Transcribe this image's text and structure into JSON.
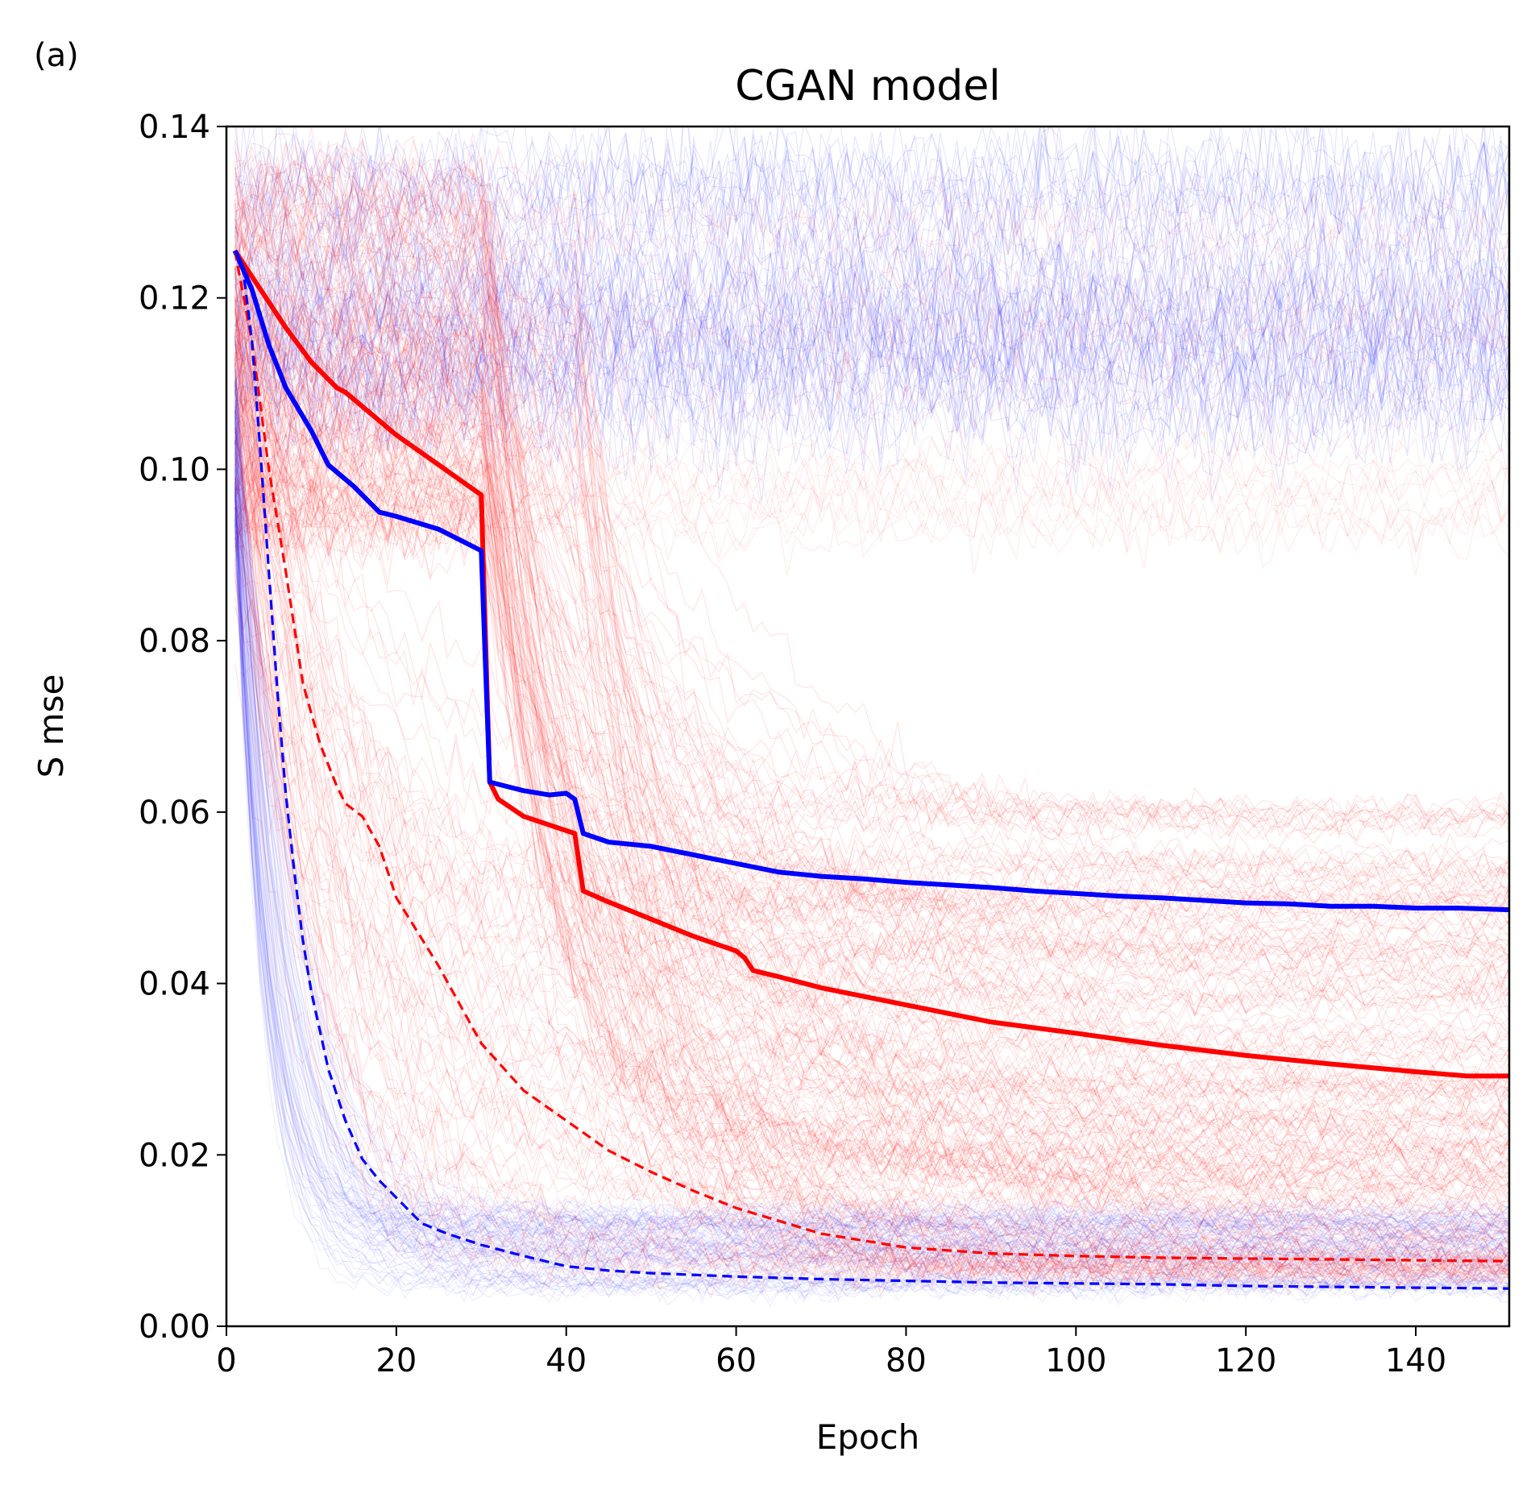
{
  "panel_label": "(a)",
  "chart_data": {
    "type": "line",
    "title": "CGAN model",
    "xlabel": "Epoch",
    "ylabel": "S mse",
    "xlim": [
      0,
      151
    ],
    "ylim": [
      0,
      0.14
    ],
    "xticks": [
      0,
      20,
      40,
      60,
      80,
      100,
      120,
      140
    ],
    "yticks": [
      0.0,
      0.02,
      0.04,
      0.06,
      0.08,
      0.1,
      0.12,
      0.14
    ],
    "grid": false,
    "legend": "none",
    "colors": {
      "red": "#ff0000",
      "blue": "#0000ff"
    },
    "series": [
      {
        "color": "#ff0000",
        "style": "solid",
        "x": [
          1,
          3,
          5,
          7,
          10,
          13,
          14,
          17,
          20,
          25,
          30,
          31,
          32,
          35,
          38,
          41,
          42,
          45,
          50,
          55,
          60,
          61,
          62,
          65,
          70,
          80,
          90,
          100,
          110,
          120,
          130,
          140,
          146,
          151
        ],
        "y": [
          0.1255,
          0.1225,
          0.1195,
          0.1165,
          0.1125,
          0.1095,
          0.109,
          0.1065,
          0.104,
          0.1005,
          0.097,
          0.0635,
          0.0615,
          0.0595,
          0.0585,
          0.0575,
          0.0508,
          0.0495,
          0.0475,
          0.0455,
          0.0438,
          0.043,
          0.0415,
          0.0408,
          0.0395,
          0.0375,
          0.0355,
          0.0342,
          0.0328,
          0.0316,
          0.0306,
          0.0297,
          0.0292,
          0.0292
        ]
      },
      {
        "color": "#0000ff",
        "style": "solid",
        "x": [
          1,
          3,
          5,
          7,
          10,
          12,
          15,
          18,
          20,
          25,
          28,
          30,
          31,
          33,
          35,
          38,
          40,
          41,
          42,
          45,
          50,
          55,
          60,
          65,
          70,
          75,
          80,
          85,
          90,
          95,
          100,
          105,
          110,
          115,
          120,
          125,
          130,
          135,
          140,
          145,
          151
        ],
        "y": [
          0.1255,
          0.121,
          0.1145,
          0.1095,
          0.1045,
          0.1005,
          0.098,
          0.095,
          0.0945,
          0.093,
          0.0915,
          0.0905,
          0.0635,
          0.063,
          0.0625,
          0.062,
          0.0622,
          0.0615,
          0.0575,
          0.0565,
          0.056,
          0.055,
          0.054,
          0.053,
          0.0525,
          0.0522,
          0.0518,
          0.0515,
          0.0512,
          0.0508,
          0.0505,
          0.0502,
          0.05,
          0.0497,
          0.0494,
          0.0493,
          0.049,
          0.049,
          0.0488,
          0.0488,
          0.0486
        ]
      },
      {
        "color": "#ff0000",
        "style": "dashed",
        "x": [
          1,
          3,
          5,
          7,
          9,
          11,
          13,
          14,
          16,
          18,
          20,
          25,
          30,
          35,
          40,
          45,
          50,
          55,
          60,
          70,
          80,
          90,
          100,
          110,
          120,
          130,
          140,
          151
        ],
        "y": [
          0.1255,
          0.115,
          0.1,
          0.088,
          0.075,
          0.068,
          0.063,
          0.061,
          0.0595,
          0.056,
          0.05,
          0.042,
          0.033,
          0.0275,
          0.024,
          0.0205,
          0.018,
          0.0158,
          0.0138,
          0.0108,
          0.0092,
          0.0085,
          0.0082,
          0.008,
          0.0079,
          0.0078,
          0.0077,
          0.0076
        ]
      },
      {
        "color": "#0000ff",
        "style": "dashed",
        "x": [
          1,
          2,
          3,
          4,
          5,
          6,
          7,
          8,
          9,
          10,
          12,
          14,
          16,
          18,
          20,
          23,
          26,
          30,
          35,
          40,
          45,
          50,
          60,
          70,
          80,
          90,
          100,
          110,
          120,
          130,
          140,
          151
        ],
        "y": [
          0.1255,
          0.123,
          0.115,
          0.102,
          0.088,
          0.074,
          0.062,
          0.053,
          0.045,
          0.039,
          0.03,
          0.024,
          0.0195,
          0.017,
          0.015,
          0.012,
          0.0108,
          0.0095,
          0.0082,
          0.007,
          0.0065,
          0.0062,
          0.0058,
          0.0055,
          0.0053,
          0.0051,
          0.005,
          0.0049,
          0.0047,
          0.0046,
          0.0045,
          0.0044
        ]
      }
    ]
  }
}
